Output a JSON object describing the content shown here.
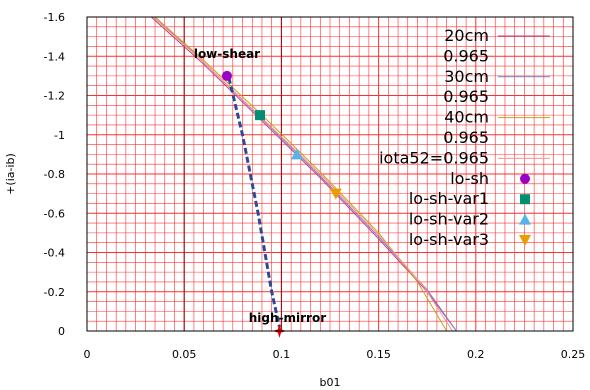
{
  "chart_data": {
    "type": "line",
    "title": "",
    "xlabel": "b01",
    "ylabel": "+(ia-ib)",
    "xlim": [
      0,
      0.25
    ],
    "ylim": [
      0,
      -1.6
    ],
    "x_ticks": [
      "0",
      "0.05",
      "0.1",
      "0.15",
      "0.2",
      "0.25"
    ],
    "y_ticks": [
      "0",
      "-0.2",
      "-0.4",
      "-0.6",
      "-0.8",
      "-1",
      "-1.2",
      "-1.4",
      "-1.6"
    ],
    "grid": true,
    "legend_position": "top-right",
    "colors": {
      "grid": "#ff3030",
      "frame": "#000000",
      "curve_20cm": "#c0408a",
      "curve_30cm": "#8080c0",
      "curve_40cm": "#c8a020",
      "curve_iota52": "#ff9090",
      "dashed": "#2a4a9a",
      "lo_sh": "#9a00c8",
      "lo_sh_var1": "#009070",
      "lo_sh_var2": "#56b4e9",
      "lo_sh_var3": "#e69f00",
      "high_mirror": "#e00000"
    },
    "legend": [
      {
        "label": "20cm",
        "kind": "line",
        "color_key": "curve_20cm"
      },
      {
        "label": "0.965",
        "kind": "none"
      },
      {
        "label": "30cm",
        "kind": "line",
        "color_key": "curve_30cm"
      },
      {
        "label": "0.965",
        "kind": "none"
      },
      {
        "label": "40cm",
        "kind": "line",
        "color_key": "curve_40cm"
      },
      {
        "label": "0.965",
        "kind": "none"
      },
      {
        "label": "iota52=0.965",
        "kind": "line",
        "color_key": "curve_iota52"
      },
      {
        "label": "lo-sh",
        "kind": "circle",
        "color_key": "lo_sh"
      },
      {
        "label": "lo-sh-var1",
        "kind": "square",
        "color_key": "lo_sh_var1"
      },
      {
        "label": "lo-sh-var2",
        "kind": "triangle-up",
        "color_key": "lo_sh_var2"
      },
      {
        "label": "lo-sh-var3",
        "kind": "triangle-down",
        "color_key": "lo_sh_var3"
      }
    ],
    "series": [
      {
        "name": "20cm",
        "color_key": "curve_20cm",
        "x": [
          0.033,
          0.06,
          0.09,
          0.12,
          0.15,
          0.175,
          0.19
        ],
        "y": [
          -1.6,
          -1.36,
          -1.07,
          -0.78,
          -0.47,
          -0.2,
          0.0
        ]
      },
      {
        "name": "30cm",
        "color_key": "curve_30cm",
        "x": [
          0.035,
          0.06,
          0.09,
          0.12,
          0.15,
          0.175,
          0.19
        ],
        "y": [
          -1.6,
          -1.37,
          -1.08,
          -0.79,
          -0.48,
          -0.21,
          0.0
        ]
      },
      {
        "name": "40cm",
        "color_key": "curve_40cm",
        "x": [
          0.035,
          0.06,
          0.09,
          0.12,
          0.15,
          0.17,
          0.185
        ],
        "y": [
          -1.6,
          -1.38,
          -1.1,
          -0.81,
          -0.5,
          -0.25,
          0.0
        ]
      },
      {
        "name": "iota52=0.965",
        "color_key": "curve_iota52",
        "x": [
          0.034,
          0.06,
          0.09,
          0.12,
          0.15,
          0.173,
          0.188
        ],
        "y": [
          -1.6,
          -1.37,
          -1.085,
          -0.8,
          -0.49,
          -0.23,
          0.0
        ]
      }
    ],
    "dashed_path": {
      "x": [
        0.073,
        0.08,
        0.088,
        0.095,
        0.099
      ],
      "y": [
        -1.29,
        -1.0,
        -0.6,
        -0.2,
        -0.02
      ]
    },
    "points": [
      {
        "name": "lo-sh",
        "marker": "circle",
        "color_key": "lo_sh",
        "x": 0.072,
        "y": -1.3
      },
      {
        "name": "lo-sh-var1",
        "marker": "square",
        "color_key": "lo_sh_var1",
        "x": 0.089,
        "y": -1.1
      },
      {
        "name": "lo-sh-var2",
        "marker": "triangle-up",
        "color_key": "lo_sh_var2",
        "x": 0.108,
        "y": -0.9
      },
      {
        "name": "lo-sh-var3",
        "marker": "triangle-down",
        "color_key": "lo_sh_var3",
        "x": 0.128,
        "y": -0.7
      },
      {
        "name": "high-mirror",
        "marker": "star",
        "color_key": "high_mirror",
        "x": 0.099,
        "y": 0.0
      }
    ],
    "annotations": [
      {
        "text": "low-shear",
        "x": 0.072,
        "y": -1.3
      },
      {
        "text": "high-mirror",
        "x": 0.099,
        "y": 0.0
      }
    ]
  }
}
